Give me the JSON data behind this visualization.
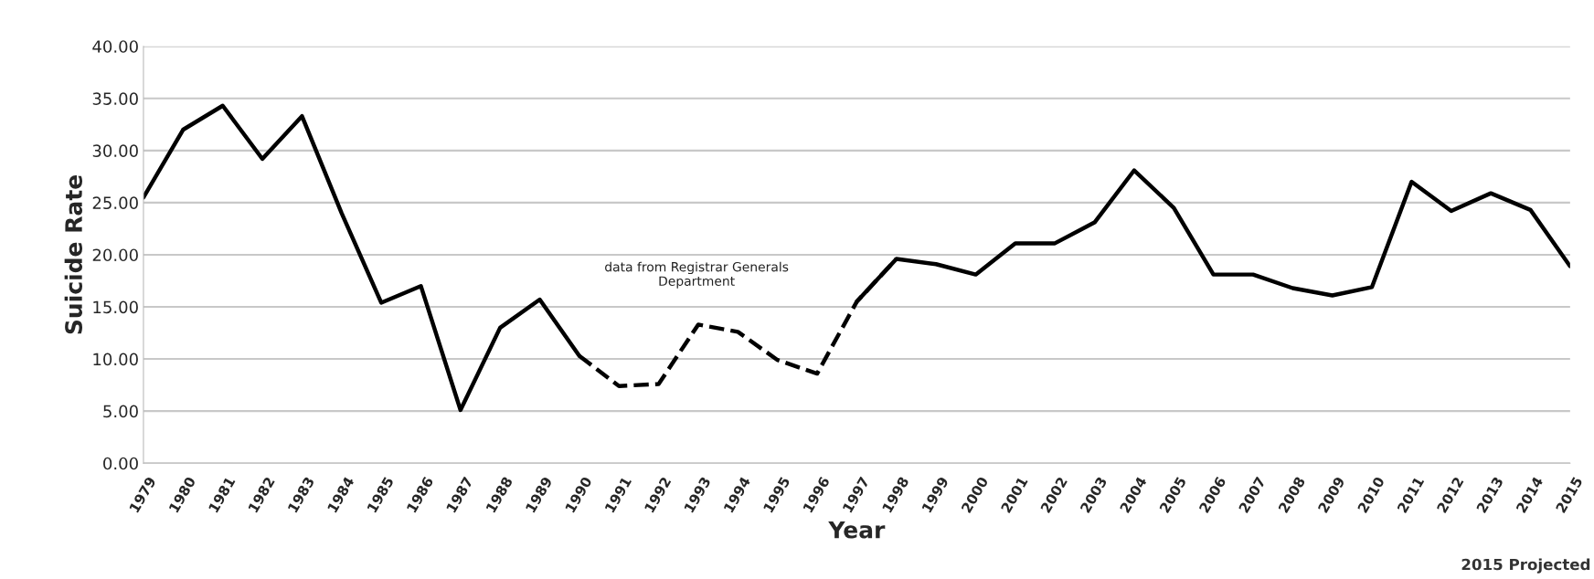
{
  "chart_data": {
    "type": "line",
    "xlabel": "Year",
    "ylabel": "Suicide Rate",
    "categories": [
      "1979",
      "1980",
      "1981",
      "1982",
      "1983",
      "1984",
      "1985",
      "1986",
      "1987",
      "1988",
      "1989",
      "1990",
      "1991",
      "1992",
      "1993",
      "1994",
      "1995",
      "1996",
      "1997",
      "1998",
      "1999",
      "2000",
      "2001",
      "2002",
      "2003",
      "2004",
      "2005",
      "2006",
      "2007",
      "2008",
      "2009",
      "2010",
      "2011",
      "2012",
      "2013",
      "2014",
      "2015"
    ],
    "series": [
      {
        "color": "#000000",
        "line_style": "solid",
        "values": [
          25.5,
          32.0,
          34.3,
          29.2,
          33.3,
          24.0,
          15.4,
          17.0,
          5.1,
          13.0,
          15.7,
          10.3,
          null,
          null,
          null,
          null,
          null,
          null,
          15.5,
          19.6,
          19.1,
          18.1,
          21.1,
          21.1,
          23.1,
          28.1,
          24.5,
          18.1,
          18.1,
          16.8,
          16.1,
          16.9,
          27.0,
          24.2,
          25.9,
          24.3,
          18.9
        ]
      },
      {
        "color": "#000000",
        "line_style": "dashed",
        "values": [
          null,
          null,
          null,
          null,
          null,
          null,
          null,
          null,
          null,
          null,
          null,
          10.3,
          7.4,
          7.6,
          13.3,
          12.6,
          9.9,
          8.6,
          15.5,
          19.6,
          null,
          null,
          null,
          null,
          null,
          null,
          null,
          null,
          null,
          null,
          null,
          null,
          null,
          null,
          null,
          null,
          null
        ]
      }
    ],
    "ylim": [
      0,
      40
    ],
    "yticks": [
      {
        "value": 0,
        "label": "0.00"
      },
      {
        "value": 5,
        "label": "5.00"
      },
      {
        "value": 10,
        "label": "10.00"
      },
      {
        "value": 15,
        "label": "15.00"
      },
      {
        "value": 20,
        "label": "20.00"
      },
      {
        "value": 25,
        "label": "25.00"
      },
      {
        "value": 30,
        "label": "30.00"
      },
      {
        "value": 35,
        "label": "35.00"
      },
      {
        "value": 40,
        "label": "40.00"
      }
    ],
    "grid": "y",
    "legend": false,
    "marker": "none",
    "annotations": [
      "data from Registrar Generals\nDepartment",
      "2015 Projected"
    ]
  }
}
